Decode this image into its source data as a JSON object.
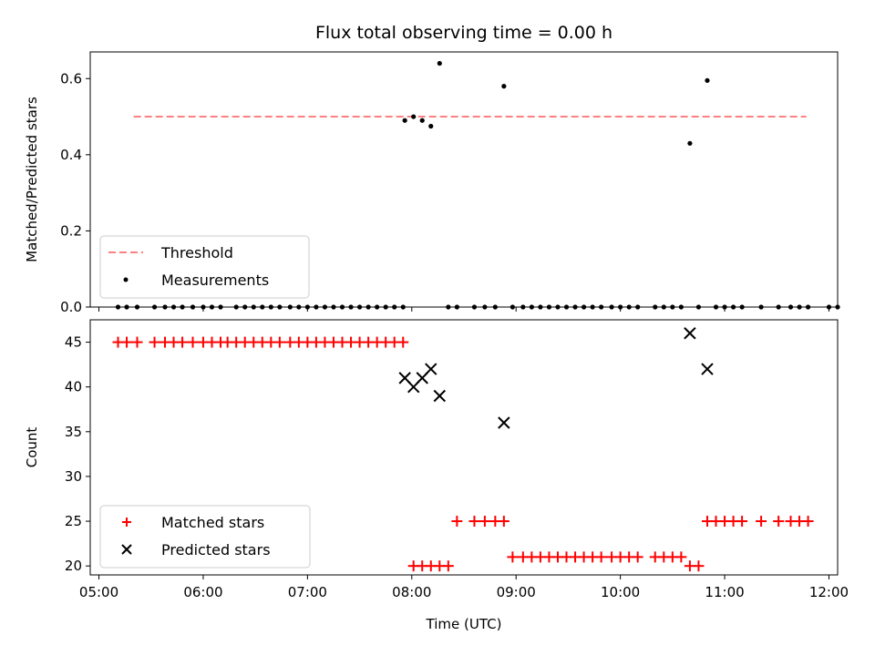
{
  "chart_data": [
    {
      "type": "scatter",
      "title": "Flux total observing time = 0.00 h",
      "xlabel": "",
      "ylabel": "Matched/Predicted stars",
      "xlim": [
        "05:00",
        "12:00"
      ],
      "ylim": [
        0.0,
        0.67
      ],
      "yticks": [
        "0.0",
        "0.2",
        "0.4",
        "0.6"
      ],
      "threshold": {
        "name": "Threshold",
        "value": 0.5,
        "x": [
          "05:20",
          "11:47"
        ],
        "color": "#ff8080"
      },
      "series": [
        {
          "name": "Measurements",
          "color": "#000000",
          "x": [
            "05:11",
            "05:16",
            "05:22",
            "05:32",
            "05:38",
            "05:43",
            "05:48",
            "05:54",
            "06:00",
            "06:05",
            "06:10",
            "06:19",
            "06:24",
            "06:29",
            "06:34",
            "06:39",
            "06:44",
            "06:50",
            "06:55",
            "07:00",
            "07:05",
            "07:10",
            "07:15",
            "07:20",
            "07:25",
            "07:30",
            "07:35",
            "07:40",
            "07:45",
            "07:50",
            "07:55",
            "07:56",
            "08:01",
            "08:06",
            "08:11",
            "08:16",
            "08:21",
            "08:26",
            "08:36",
            "08:42",
            "08:48",
            "08:53",
            "08:58",
            "09:04",
            "09:09",
            "09:14",
            "09:19",
            "09:24",
            "09:29",
            "09:34",
            "09:39",
            "09:44",
            "09:49",
            "09:55",
            "10:00",
            "10:05",
            "10:10",
            "10:20",
            "10:25",
            "10:30",
            "10:35",
            "10:40",
            "10:45",
            "10:50",
            "10:55",
            "11:00",
            "11:05",
            "11:10",
            "11:21",
            "11:31",
            "11:38",
            "11:43",
            "11:48",
            "12:00",
            "12:05"
          ],
          "y": [
            0,
            0,
            0,
            0,
            0,
            0,
            0,
            0,
            0,
            0,
            0,
            0,
            0,
            0,
            0,
            0,
            0,
            0,
            0,
            0,
            0,
            0,
            0,
            0,
            0,
            0,
            0,
            0,
            0,
            0,
            0,
            0.49,
            0.5,
            0.49,
            0.475,
            0.64,
            0,
            0,
            0,
            0,
            0,
            0.58,
            0,
            0,
            0,
            0,
            0,
            0,
            0,
            0,
            0,
            0,
            0,
            0,
            0,
            0,
            0,
            0,
            0,
            0,
            0,
            0.43,
            0,
            0.595,
            0,
            0,
            0,
            0,
            0,
            0,
            0,
            0,
            0,
            0,
            0
          ]
        }
      ]
    },
    {
      "type": "scatter",
      "title": "",
      "xlabel": "Time (UTC)",
      "ylabel": "Count",
      "xlim": [
        "05:00",
        "12:00"
      ],
      "ylim": [
        19,
        47.5
      ],
      "yticks": [
        "20",
        "25",
        "30",
        "35",
        "40",
        "45"
      ],
      "xticks": [
        "05:00",
        "06:00",
        "07:00",
        "08:00",
        "09:00",
        "10:00",
        "11:00",
        "12:00"
      ],
      "series": [
        {
          "name": "Matched stars",
          "marker": "+",
          "color": "#ff0000",
          "x": [
            "05:11",
            "05:16",
            "05:22",
            "05:32",
            "05:38",
            "05:43",
            "05:48",
            "05:54",
            "06:00",
            "06:05",
            "06:10",
            "06:14",
            "06:19",
            "06:24",
            "06:29",
            "06:34",
            "06:39",
            "06:44",
            "06:50",
            "06:55",
            "07:00",
            "07:05",
            "07:10",
            "07:15",
            "07:20",
            "07:25",
            "07:30",
            "07:35",
            "07:40",
            "07:45",
            "07:50",
            "07:55",
            "08:01",
            "08:06",
            "08:11",
            "08:16",
            "08:21",
            "08:26",
            "08:36",
            "08:42",
            "08:48",
            "08:53",
            "08:58",
            "09:04",
            "09:09",
            "09:14",
            "09:19",
            "09:24",
            "09:29",
            "09:34",
            "09:39",
            "09:44",
            "09:49",
            "09:55",
            "10:00",
            "10:05",
            "10:10",
            "10:20",
            "10:25",
            "10:30",
            "10:35",
            "10:40",
            "10:45",
            "10:50",
            "10:55",
            "11:00",
            "11:05",
            "11:10",
            "11:21",
            "11:31",
            "11:38",
            "11:43",
            "11:48"
          ],
          "y": [
            45,
            45,
            45,
            45,
            45,
            45,
            45,
            45,
            45,
            45,
            45,
            45,
            45,
            45,
            45,
            45,
            45,
            45,
            45,
            45,
            45,
            45,
            45,
            45,
            45,
            45,
            45,
            45,
            45,
            45,
            45,
            45,
            20,
            20,
            20,
            20,
            20,
            25,
            25,
            25,
            25,
            25,
            21,
            21,
            21,
            21,
            21,
            21,
            21,
            21,
            21,
            21,
            21,
            21,
            21,
            21,
            21,
            21,
            21,
            21,
            21,
            20,
            20,
            25,
            25,
            25,
            25,
            25,
            25,
            25,
            25,
            25,
            25
          ]
        },
        {
          "name": "Predicted stars",
          "marker": "x",
          "color": "#000000",
          "x": [
            "07:56",
            "08:01",
            "08:06",
            "08:11",
            "08:16",
            "08:53",
            "10:40",
            "10:50"
          ],
          "y": [
            41,
            40,
            41,
            42,
            39,
            36,
            46,
            42
          ]
        }
      ]
    }
  ]
}
